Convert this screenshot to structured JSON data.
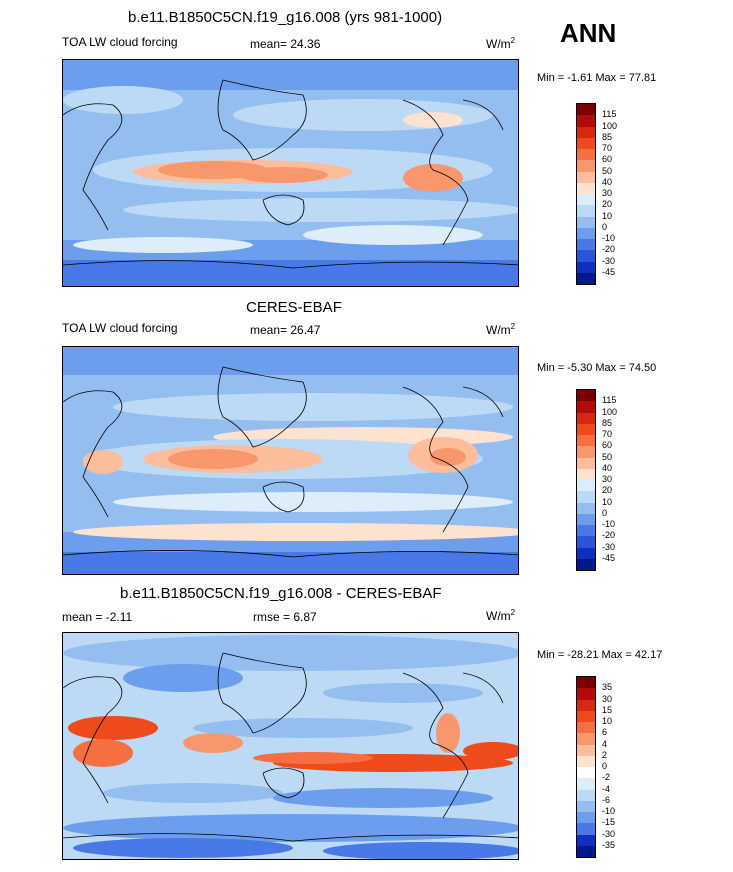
{
  "season": "ANN",
  "panels": [
    {
      "title": "b.e11.B1850C5CN.f19_g16.008 (yrs 981-1000)",
      "left": "TOA LW cloud forcing",
      "stat": "mean=  24.36",
      "units": "W/m",
      "units_sup": "2",
      "minmax": "Min = -1.61 Max = 77.81",
      "levels": [
        "115",
        "100",
        "85",
        "70",
        "60",
        "50",
        "40",
        "30",
        "20",
        "10",
        "0",
        "-10",
        "-20",
        "-30",
        "-45"
      ],
      "colors": [
        "#7a0000",
        "#b30a0a",
        "#d8280f",
        "#ee4a1c",
        "#f56f42",
        "#f9976c",
        "#fbbd9c",
        "#fde3cf",
        "#ddeefa",
        "#bcd9f5",
        "#94bdf0",
        "#6d9ded",
        "#4879e6",
        "#2a55d8",
        "#0f2fbf",
        "#001a8c"
      ]
    },
    {
      "title": "CERES-EBAF",
      "left": "TOA LW cloud forcing",
      "stat": "mean=  26.47",
      "units": "W/m",
      "units_sup": "2",
      "minmax": "Min = -5.30 Max = 74.50",
      "levels": [
        "115",
        "100",
        "85",
        "70",
        "60",
        "50",
        "40",
        "30",
        "20",
        "10",
        "0",
        "-10",
        "-20",
        "-30",
        "-45"
      ],
      "colors": [
        "#7a0000",
        "#b30a0a",
        "#d8280f",
        "#ee4a1c",
        "#f56f42",
        "#f9976c",
        "#fbbd9c",
        "#fde3cf",
        "#ddeefa",
        "#bcd9f5",
        "#94bdf0",
        "#6d9ded",
        "#4879e6",
        "#2a55d8",
        "#0f2fbf",
        "#001a8c"
      ]
    },
    {
      "title": "b.e11.B1850C5CN.f19_g16.008 - CERES-EBAF",
      "left": "mean =  -2.11",
      "stat": "rmse =   6.87",
      "units": "W/m",
      "units_sup": "2",
      "minmax": "Min = -28.21 Max = 42.17",
      "levels": [
        "35",
        "30",
        "15",
        "10",
        "6",
        "4",
        "2",
        "0",
        "-2",
        "-4",
        "-6",
        "-10",
        "-15",
        "-30",
        "-35"
      ],
      "colors": [
        "#7a0000",
        "#b30a0a",
        "#d8280f",
        "#ee4a1c",
        "#f56f42",
        "#f9976c",
        "#fbbd9c",
        "#fde3cf",
        "#ffffff",
        "#ddeefa",
        "#bcd9f5",
        "#94bdf0",
        "#6d9ded",
        "#4879e6",
        "#0f2fbf",
        "#001a8c"
      ]
    }
  ],
  "chart_data": [
    {
      "type": "heatmap",
      "title": "b.e11.B1850C5CN.f19_g16.008 (yrs 981-1000)",
      "variable": "TOA LW cloud forcing",
      "units": "W/m2",
      "mean": 24.36,
      "min": -1.61,
      "max": 77.81,
      "contour_levels": [
        -45,
        -30,
        -20,
        -10,
        0,
        10,
        20,
        30,
        40,
        50,
        60,
        70,
        85,
        100,
        115
      ]
    },
    {
      "type": "heatmap",
      "title": "CERES-EBAF",
      "variable": "TOA LW cloud forcing",
      "units": "W/m2",
      "mean": 26.47,
      "min": -5.3,
      "max": 74.5,
      "contour_levels": [
        -45,
        -30,
        -20,
        -10,
        0,
        10,
        20,
        30,
        40,
        50,
        60,
        70,
        85,
        100,
        115
      ]
    },
    {
      "type": "heatmap",
      "title": "b.e11.B1850C5CN.f19_g16.008 - CERES-EBAF",
      "units": "W/m2",
      "mean": -2.11,
      "rmse": 6.87,
      "min": -28.21,
      "max": 42.17,
      "contour_levels": [
        -35,
        -30,
        -15,
        -10,
        -6,
        -4,
        -2,
        0,
        2,
        4,
        6,
        10,
        15,
        30,
        35
      ]
    }
  ]
}
